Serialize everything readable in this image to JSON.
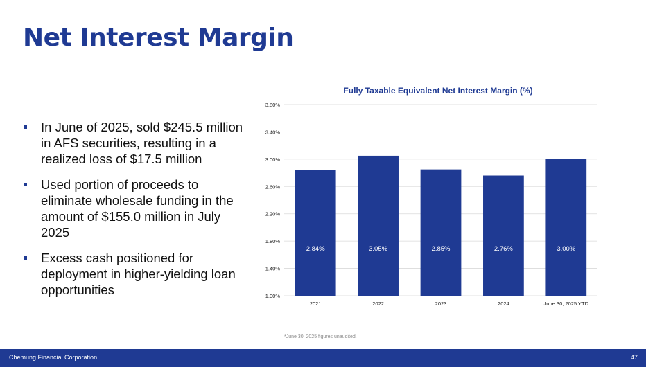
{
  "slide": {
    "title": "Net Interest Margin",
    "bullets": [
      "In June of 2025, sold $245.5 million in AFS securities, resulting in a realized loss of $17.5 million",
      "Used portion of proceeds to eliminate wholesale funding in the amount of $155.0 million in July 2025",
      "Excess cash positioned for deployment in higher-yielding loan opportunities"
    ],
    "footnote": "*June 30, 2025 figures unaudited.",
    "company": "Chemung Financial Corporation",
    "page_number": "47"
  },
  "colors": {
    "brand": "#1f3a93",
    "bar": "#1f3a93",
    "gridline": "#d9d9d9"
  },
  "chart_data": {
    "type": "bar",
    "title": "Fully Taxable Equivalent Net Interest Margin (%)",
    "xlabel": "",
    "ylabel": "",
    "categories": [
      "2021",
      "2022",
      "2023",
      "2024",
      "June 30, 2025 YTD"
    ],
    "values": [
      2.84,
      3.05,
      2.85,
      2.76,
      3.0
    ],
    "value_labels": [
      "2.84%",
      "3.05%",
      "2.85%",
      "2.76%",
      "3.00%"
    ],
    "ylim": [
      1.0,
      3.8
    ],
    "yticks": [
      1.0,
      1.4,
      1.8,
      2.2,
      2.6,
      3.0,
      3.4,
      3.8
    ],
    "ytick_labels": [
      "1.00%",
      "1.40%",
      "1.80%",
      "2.20%",
      "2.60%",
      "3.00%",
      "3.40%",
      "3.80%"
    ],
    "grid": true,
    "legend": "none"
  }
}
